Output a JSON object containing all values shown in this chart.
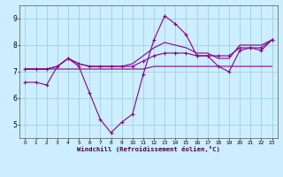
{
  "xlabel": "Windchill (Refroidissement éolien,°C)",
  "background_color": "#cceeff",
  "grid_color": "#99cccc",
  "line_color": "#880088",
  "x_ticks": [
    0,
    1,
    2,
    3,
    4,
    5,
    6,
    7,
    8,
    9,
    10,
    11,
    12,
    13,
    14,
    15,
    16,
    17,
    18,
    19,
    20,
    21,
    22,
    23
  ],
  "y_ticks": [
    5,
    6,
    7,
    8,
    9
  ],
  "ylim": [
    4.5,
    9.5
  ],
  "xlim": [
    -0.5,
    23.5
  ],
  "line1_x": [
    0,
    1,
    2,
    3,
    4,
    5,
    6,
    7,
    8,
    9,
    10,
    11,
    12,
    13,
    14,
    15,
    16,
    17,
    18,
    19,
    20,
    21,
    22,
    23
  ],
  "line1_y": [
    6.6,
    6.6,
    6.5,
    7.2,
    7.5,
    7.2,
    6.2,
    5.2,
    4.7,
    5.1,
    5.4,
    6.9,
    8.2,
    9.1,
    8.8,
    8.4,
    7.6,
    7.6,
    7.2,
    7.0,
    7.8,
    7.9,
    7.8,
    8.2
  ],
  "line2_x": [
    0,
    1,
    2,
    3,
    4,
    5,
    6,
    7,
    8,
    9,
    10,
    11,
    12,
    13,
    14,
    15,
    16,
    17,
    18,
    19,
    20,
    21,
    22,
    23
  ],
  "line2_y": [
    7.1,
    7.1,
    7.1,
    7.1,
    7.1,
    7.1,
    7.1,
    7.1,
    7.1,
    7.1,
    7.1,
    7.1,
    7.2,
    7.2,
    7.2,
    7.2,
    7.2,
    7.2,
    7.2,
    7.2,
    7.2,
    7.2,
    7.2,
    7.2
  ],
  "line3_x": [
    0,
    1,
    2,
    3,
    4,
    5,
    6,
    7,
    8,
    9,
    10,
    11,
    12,
    13,
    14,
    15,
    16,
    17,
    18,
    19,
    20,
    21,
    22,
    23
  ],
  "line3_y": [
    7.1,
    7.1,
    7.1,
    7.2,
    7.5,
    7.3,
    7.2,
    7.2,
    7.2,
    7.2,
    7.2,
    7.4,
    7.6,
    7.7,
    7.7,
    7.7,
    7.6,
    7.6,
    7.6,
    7.6,
    7.9,
    7.9,
    7.9,
    8.2
  ],
  "line4_x": [
    0,
    1,
    2,
    3,
    4,
    5,
    6,
    7,
    8,
    9,
    10,
    11,
    12,
    13,
    14,
    15,
    16,
    17,
    18,
    19,
    20,
    21,
    22,
    23
  ],
  "line4_y": [
    7.1,
    7.1,
    7.1,
    7.2,
    7.5,
    7.3,
    7.2,
    7.2,
    7.2,
    7.2,
    7.3,
    7.6,
    7.9,
    8.1,
    8.0,
    7.9,
    7.7,
    7.7,
    7.5,
    7.5,
    8.0,
    8.0,
    8.0,
    8.2
  ]
}
